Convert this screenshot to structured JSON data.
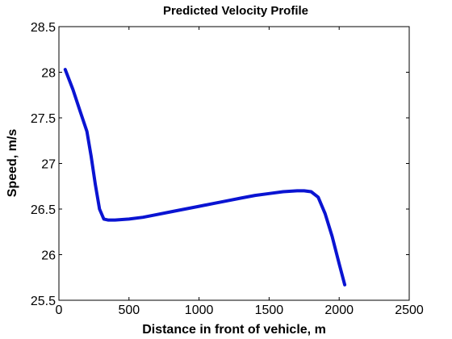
{
  "chart_data": {
    "type": "line",
    "title": "Predicted Velocity Profile",
    "xlabel": "Distance in front of vehicle, m",
    "ylabel": "Speed, m/s",
    "xlim": [
      0,
      2500
    ],
    "ylim": [
      25.5,
      28.5
    ],
    "xticks": [
      0,
      500,
      1000,
      1500,
      2000,
      2500
    ],
    "yticks": [
      25.5,
      26,
      26.5,
      27,
      27.5,
      28,
      28.5
    ],
    "xtick_labels": [
      "0",
      "500",
      "1000",
      "1500",
      "2000",
      "2500"
    ],
    "ytick_labels": [
      "25.5",
      "26",
      "26.5",
      "27",
      "27.5",
      "28",
      "28.5"
    ],
    "grid": false,
    "series": [
      {
        "color": "#0a14d2",
        "x": [
          45,
          100,
          150,
          200,
          230,
          260,
          290,
          320,
          350,
          400,
          500,
          600,
          700,
          800,
          900,
          1000,
          1100,
          1200,
          1300,
          1400,
          1500,
          1600,
          1700,
          1750,
          1800,
          1850,
          1900,
          1950,
          2000,
          2040
        ],
        "y": [
          28.03,
          27.81,
          27.58,
          27.35,
          27.08,
          26.77,
          26.5,
          26.39,
          26.38,
          26.38,
          26.39,
          26.41,
          26.44,
          26.47,
          26.5,
          26.53,
          26.56,
          26.59,
          26.62,
          26.65,
          26.67,
          26.69,
          26.7,
          26.7,
          26.69,
          26.63,
          26.45,
          26.2,
          25.9,
          25.67
        ]
      }
    ]
  }
}
